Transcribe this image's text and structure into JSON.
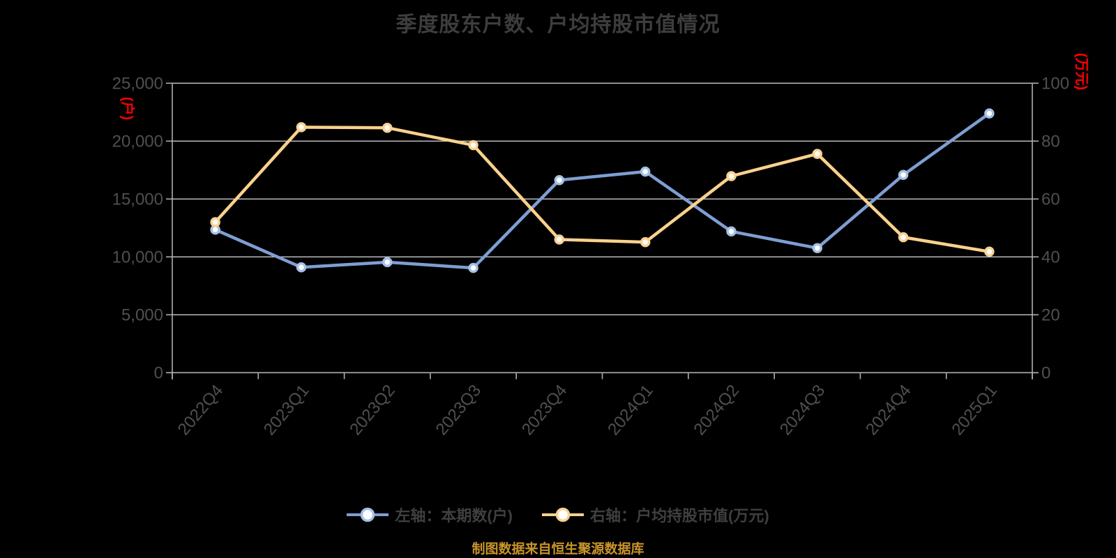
{
  "chart_data": {
    "type": "line",
    "title": "季度股东户数、户均持股市值情况",
    "source_note": "制图数据来自恒生聚源数据库",
    "categories": [
      "2022Q4",
      "2023Q1",
      "2023Q2",
      "2023Q3",
      "2023Q4",
      "2024Q1",
      "2024Q2",
      "2024Q3",
      "2024Q4",
      "2025Q1"
    ],
    "series": [
      {
        "name": "左轴：本期数(户)",
        "axis": "left",
        "color": "#7E9ED3",
        "marker_ring": "#A5C0E5",
        "values": [
          12350,
          9100,
          9540,
          9050,
          16630,
          17370,
          12200,
          10760,
          17080,
          22390
        ]
      },
      {
        "name": "右轴：户均持股市值(万元)",
        "axis": "right",
        "color": "#FAD18C",
        "marker_ring": "#F9D193",
        "values": [
          52.0,
          84.8,
          84.6,
          78.6,
          46.0,
          45.1,
          67.9,
          75.6,
          46.8,
          41.8
        ]
      }
    ],
    "left_axis": {
      "name": "(户)",
      "ticks": [
        "25,000",
        "20,000",
        "15,000",
        "10,000",
        "5,000",
        "0"
      ],
      "lim": [
        0,
        25000
      ]
    },
    "right_axis": {
      "name": "(万元)",
      "ticks": [
        "100",
        "80",
        "60",
        "40",
        "20",
        "0"
      ],
      "lim": [
        0,
        100
      ]
    },
    "grid": true,
    "legend_position": "bottom"
  },
  "colors": {
    "background": "#000000",
    "title_text": "#3D3D3D",
    "tick_text": "#4F4F4F",
    "axis_line": "#AFAFAF",
    "grid_line": "#CACACA",
    "axis_unit_red": "#FF0000",
    "footer_gold": "#C9952A",
    "marker_fill": "#FFFFFF"
  }
}
